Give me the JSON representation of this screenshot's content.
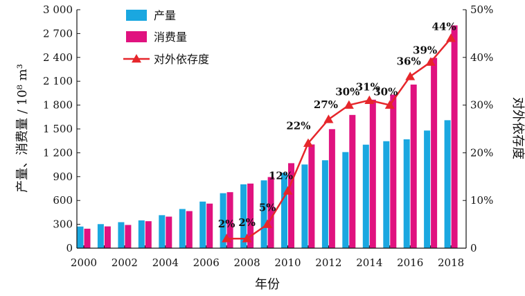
{
  "chart_data": {
    "type": "bar+line",
    "xlabel": "年份",
    "ylabel_left": "产量、消费量 / 10⁸ m³",
    "ylabel_right": "对外依存度",
    "ylim_left": [
      0,
      3000
    ],
    "ylim_right": [
      0,
      50
    ],
    "yticks_left": [
      "0",
      "300",
      "600",
      "900",
      "1 200",
      "1 500",
      "1 800",
      "2 100",
      "2 400",
      "2 700",
      "3 000"
    ],
    "yticks_right": [
      "0",
      "10%",
      "20%",
      "30%",
      "40%",
      "50%"
    ],
    "xticks": [
      "2000",
      "2002",
      "2004",
      "2006",
      "2008",
      "2010",
      "2012",
      "2014",
      "2016",
      "2018"
    ],
    "categories": [
      2000,
      2001,
      2002,
      2003,
      2004,
      2005,
      2006,
      2007,
      2008,
      2009,
      2010,
      2011,
      2012,
      2013,
      2014,
      2015,
      2016,
      2017,
      2018
    ],
    "legend": {
      "placement": "top-left"
    },
    "grid": false,
    "series": [
      {
        "name": "产量",
        "kind": "bar",
        "axis": "left",
        "color": "#1aa7e0",
        "values": [
          272,
          303,
          327,
          350,
          415,
          493,
          586,
          692,
          803,
          853,
          948,
          1053,
          1106,
          1209,
          1302,
          1346,
          1369,
          1480,
          1610
        ]
      },
      {
        "name": "消费量",
        "kind": "bar",
        "axis": "left",
        "color": "#e0127f",
        "values": [
          245,
          274,
          292,
          339,
          397,
          467,
          561,
          705,
          813,
          895,
          1069,
          1305,
          1497,
          1676,
          1868,
          1932,
          2058,
          2394,
          2803
        ]
      },
      {
        "name": "对外依存度",
        "kind": "line",
        "axis": "right",
        "color": "#e6262b",
        "marker": "triangle",
        "x": [
          2007,
          2008,
          2009,
          2010,
          2011,
          2012,
          2013,
          2014,
          2015,
          2016,
          2017,
          2018
        ],
        "values": [
          2,
          2,
          5,
          12,
          22,
          27,
          30,
          31,
          30,
          36,
          39,
          44
        ],
        "labels": [
          "2%",
          "2%",
          "5%",
          "12%",
          "22%",
          "27%",
          "30%",
          "31%",
          "30%",
          "36%",
          "39%",
          "44%"
        ]
      }
    ]
  }
}
